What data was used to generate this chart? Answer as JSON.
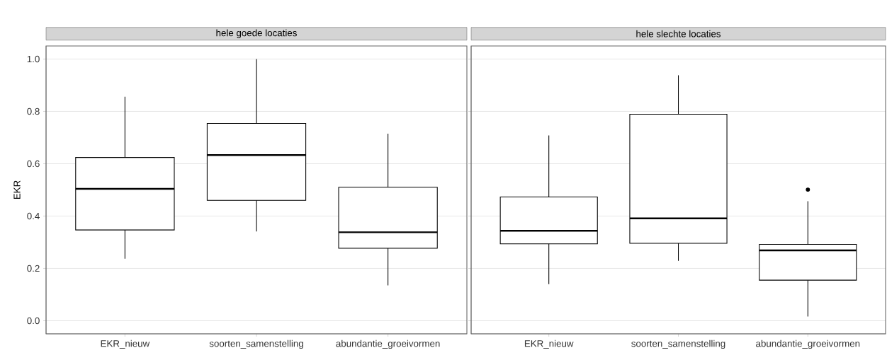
{
  "chart_data": [
    {
      "type": "box",
      "title": "hele goede locaties",
      "ylabel": "EKR",
      "categories": [
        "EKR_nieuw",
        "soorten_samenstelling",
        "abundantie_groeivormen"
      ],
      "boxes": [
        {
          "low": 0.237,
          "q1": 0.347,
          "median": 0.504,
          "q3": 0.624,
          "high": 0.856
        },
        {
          "low": 0.341,
          "q1": 0.46,
          "median": 0.633,
          "q3": 0.754,
          "high": 1.0
        },
        {
          "low": 0.135,
          "q1": 0.277,
          "median": 0.338,
          "q3": 0.51,
          "high": 0.715
        }
      ],
      "ylim": [
        -0.05,
        1.05
      ],
      "yticks": [
        {
          "value": 0,
          "label": "0.0"
        },
        0.2,
        0.4,
        0.6,
        0.8,
        {
          "value": 1,
          "label": "1.0"
        }
      ],
      "grid": "y"
    },
    {
      "type": "box",
      "title": "hele slechte locaties",
      "categories": [
        "EKR_nieuw",
        "soorten_samenstelling",
        "abundantie_groeivormen"
      ],
      "boxes": [
        {
          "low": 0.14,
          "q1": 0.294,
          "median": 0.344,
          "q3": 0.473,
          "high": 0.708
        },
        {
          "low": 0.229,
          "q1": 0.296,
          "median": 0.391,
          "q3": 0.789,
          "high": 0.938
        },
        {
          "low": 0.016,
          "q1": 0.155,
          "median": 0.269,
          "q3": 0.292,
          "high": 0.457,
          "outliers": [
            0.501
          ]
        }
      ],
      "ylim": [
        -0.05,
        1.05
      ],
      "yticks": [
        0,
        0.2,
        0.4,
        0.6,
        0.8,
        1
      ],
      "grid": "y",
      "tick_labels": "x"
    }
  ]
}
